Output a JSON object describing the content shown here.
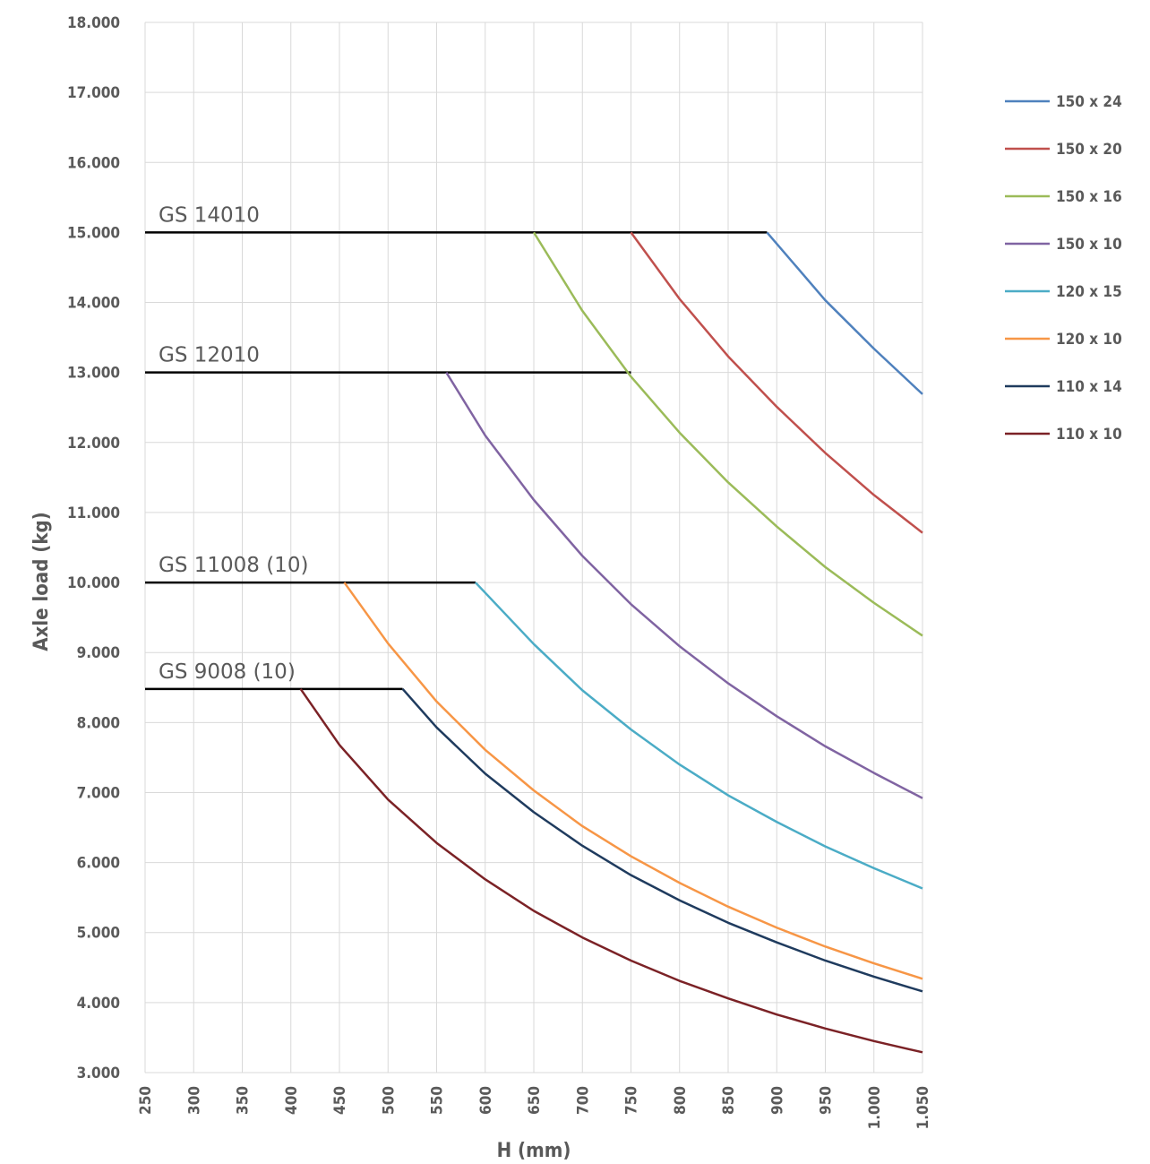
{
  "chart_data": {
    "type": "line",
    "title": "",
    "xlabel": "H (mm)",
    "ylabel": "Axle load (kg)",
    "xlim": [
      250,
      1050
    ],
    "ylim": [
      3000,
      18000
    ],
    "grid": true,
    "legend_position": "right",
    "x_ticks": [
      250,
      300,
      350,
      400,
      450,
      500,
      550,
      600,
      650,
      700,
      750,
      800,
      850,
      900,
      950,
      1000,
      1050
    ],
    "x_tick_labels": [
      "250",
      "300",
      "350",
      "400",
      "450",
      "500",
      "550",
      "600",
      "650",
      "700",
      "750",
      "800",
      "850",
      "900",
      "950",
      "1.000",
      "1.050"
    ],
    "y_ticks": [
      3000,
      4000,
      5000,
      6000,
      7000,
      8000,
      9000,
      10000,
      11000,
      12000,
      13000,
      14000,
      15000,
      16000,
      17000,
      18000
    ],
    "y_tick_labels": [
      "3.000",
      "4.000",
      "5.000",
      "6.000",
      "7.000",
      "8.000",
      "9.000",
      "10.000",
      "11.000",
      "12.000",
      "13.000",
      "14.000",
      "15.000",
      "16.000",
      "17.000",
      "18.000"
    ],
    "series": [
      {
        "name": "150 x 24",
        "color": "#4f81bd",
        "points": [
          [
            890,
            15000
          ],
          [
            950,
            14030
          ],
          [
            1000,
            13340
          ],
          [
            1050,
            12690
          ]
        ]
      },
      {
        "name": "150 x 20",
        "color": "#c0504d",
        "points": [
          [
            750,
            15000
          ],
          [
            800,
            14050
          ],
          [
            850,
            13230
          ],
          [
            900,
            12510
          ],
          [
            950,
            11850
          ],
          [
            1000,
            11250
          ],
          [
            1050,
            10710
          ]
        ]
      },
      {
        "name": "150 x 16",
        "color": "#9bbb59",
        "points": [
          [
            650,
            15000
          ],
          [
            700,
            13880
          ],
          [
            750,
            12940
          ],
          [
            800,
            12140
          ],
          [
            850,
            11430
          ],
          [
            900,
            10800
          ],
          [
            950,
            10220
          ],
          [
            1000,
            9710
          ],
          [
            1050,
            9240
          ]
        ]
      },
      {
        "name": "150 x 10",
        "color": "#8064a2",
        "points": [
          [
            560,
            13000
          ],
          [
            600,
            12100
          ],
          [
            650,
            11180
          ],
          [
            700,
            10380
          ],
          [
            750,
            9690
          ],
          [
            800,
            9090
          ],
          [
            850,
            8560
          ],
          [
            900,
            8090
          ],
          [
            950,
            7660
          ],
          [
            1000,
            7280
          ],
          [
            1050,
            6920
          ]
        ]
      },
      {
        "name": "120 x 15",
        "color": "#4bacc6",
        "points": [
          [
            590,
            10000
          ],
          [
            650,
            9120
          ],
          [
            700,
            8460
          ],
          [
            750,
            7900
          ],
          [
            800,
            7400
          ],
          [
            850,
            6960
          ],
          [
            900,
            6580
          ],
          [
            950,
            6230
          ],
          [
            1000,
            5920
          ],
          [
            1050,
            5630
          ]
        ]
      },
      {
        "name": "120 x 10",
        "color": "#f79646",
        "points": [
          [
            455,
            10000
          ],
          [
            500,
            9130
          ],
          [
            550,
            8300
          ],
          [
            600,
            7610
          ],
          [
            650,
            7030
          ],
          [
            700,
            6520
          ],
          [
            750,
            6090
          ],
          [
            800,
            5710
          ],
          [
            850,
            5370
          ],
          [
            900,
            5070
          ],
          [
            950,
            4800
          ],
          [
            1000,
            4560
          ],
          [
            1050,
            4340
          ]
        ]
      },
      {
        "name": "110 x 14",
        "color": "#1f3b5e",
        "points": [
          [
            515,
            8480
          ],
          [
            550,
            7930
          ],
          [
            600,
            7270
          ],
          [
            650,
            6720
          ],
          [
            700,
            6240
          ],
          [
            750,
            5820
          ],
          [
            800,
            5460
          ],
          [
            850,
            5140
          ],
          [
            900,
            4860
          ],
          [
            950,
            4600
          ],
          [
            1000,
            4370
          ],
          [
            1050,
            4160
          ]
        ]
      },
      {
        "name": "110 x 10",
        "color": "#7b2226",
        "points": [
          [
            410,
            8480
          ],
          [
            450,
            7680
          ],
          [
            500,
            6900
          ],
          [
            550,
            6280
          ],
          [
            600,
            5760
          ],
          [
            650,
            5310
          ],
          [
            700,
            4930
          ],
          [
            750,
            4600
          ],
          [
            800,
            4310
          ],
          [
            850,
            4060
          ],
          [
            900,
            3830
          ],
          [
            950,
            3630
          ],
          [
            1000,
            3450
          ],
          [
            1050,
            3290
          ]
        ]
      }
    ],
    "annotations": [
      {
        "label": "GS 14010",
        "color": "#000000",
        "line": [
          [
            250,
            15000
          ],
          [
            890,
            15000
          ]
        ],
        "label_at": [
          255,
          15150
        ]
      },
      {
        "label": "GS 12010",
        "color": "#000000",
        "line": [
          [
            250,
            13000
          ],
          [
            750,
            13000
          ]
        ],
        "label_at": [
          255,
          13150
        ]
      },
      {
        "label": "GS 11008 (10)",
        "color": "#000000",
        "line": [
          [
            250,
            10000
          ],
          [
            590,
            10000
          ]
        ],
        "label_at": [
          255,
          10150
        ]
      },
      {
        "label": "GS 9008 (10)",
        "color": "#000000",
        "line": [
          [
            250,
            8480
          ],
          [
            515,
            8480
          ]
        ],
        "label_at": [
          255,
          8630
        ]
      }
    ]
  },
  "colors": {
    "grid": "#d9d9d9",
    "axis_text": "#5a5a5a",
    "background": "#ffffff"
  }
}
